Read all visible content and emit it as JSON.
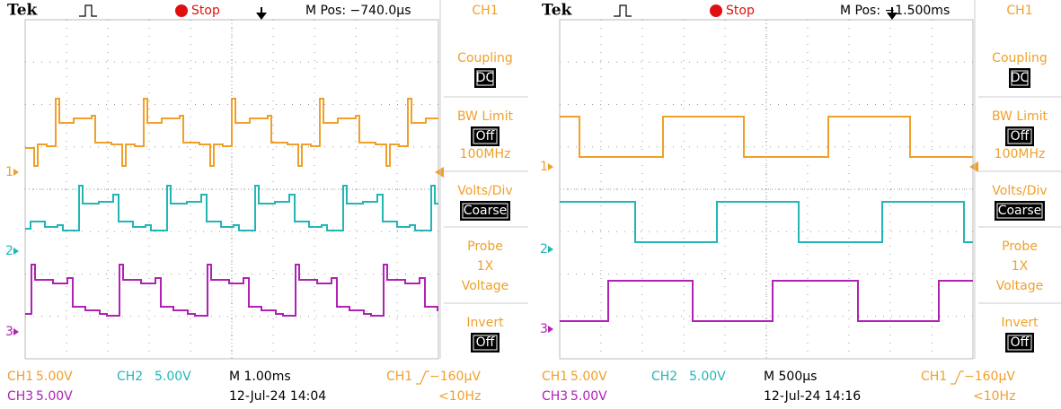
{
  "scopes": [
    {
      "header": {
        "brand": "Tek",
        "status": "Stop",
        "m_pos": "M Pos: −740.0µs"
      },
      "menu": {
        "title": "CH1",
        "items": [
          {
            "label": "Coupling",
            "boxed": "DC"
          },
          {
            "label": "BW Limit",
            "boxed": "Off",
            "sub": "100MHz"
          },
          {
            "label": "Volts/Div",
            "boxed": "Coarse"
          },
          {
            "label": "Probe",
            "value": "1X",
            "sub": "Voltage"
          },
          {
            "label": "Invert",
            "boxed": "Off"
          }
        ]
      },
      "markers": [
        "1",
        "2",
        "3"
      ],
      "footer": {
        "ch1": "CH1",
        "ch1_scale": "5.00V",
        "ch2": "CH2",
        "ch2_scale": "5.00V",
        "timebase": "M 1.00ms",
        "trig_source": "CH1",
        "trig_level": "−160µV",
        "ch3": "CH3",
        "ch3_scale": "5.00V",
        "date": "12-Jul-24 14:04",
        "trig_freq": "<10Hz"
      }
    },
    {
      "header": {
        "brand": "Tek",
        "status": "Stop",
        "m_pos": "M Pos: −1.500ms"
      },
      "menu": {
        "title": "CH1",
        "items": [
          {
            "label": "Coupling",
            "boxed": "DC"
          },
          {
            "label": "BW Limit",
            "boxed": "Off",
            "sub": "100MHz"
          },
          {
            "label": "Volts/Div",
            "boxed": "Coarse"
          },
          {
            "label": "Probe",
            "value": "1X",
            "sub": "Voltage"
          },
          {
            "label": "Invert",
            "boxed": "Off"
          }
        ]
      },
      "markers": [
        "1",
        "2",
        "3"
      ],
      "footer": {
        "ch1": "CH1",
        "ch1_scale": "5.00V",
        "ch2": "CH2",
        "ch2_scale": "5.00V",
        "timebase": "M 500µs",
        "trig_source": "CH1",
        "trig_level": "−160µV",
        "ch3": "CH3",
        "ch3_scale": "5.00V",
        "date": "12-Jul-24 14:16",
        "trig_freq": "<10Hz"
      }
    }
  ]
}
